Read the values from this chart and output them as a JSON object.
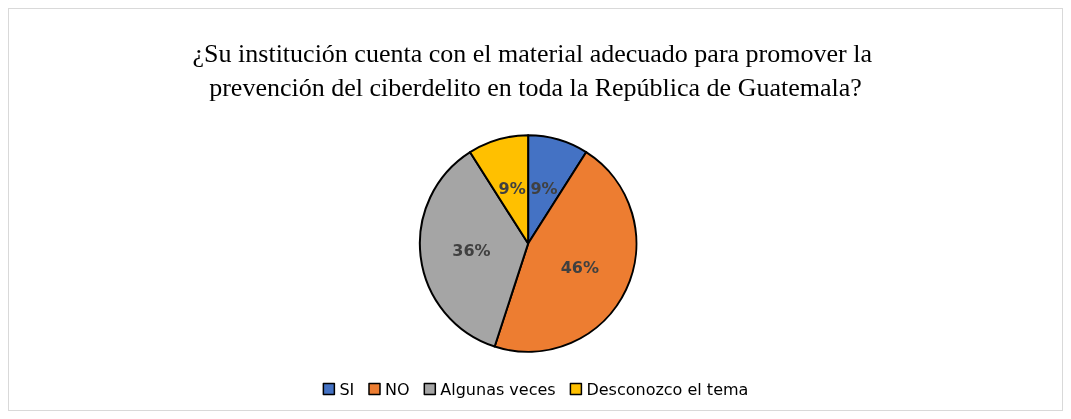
{
  "chart_data": {
    "type": "pie",
    "title": "¿Su institución cuenta con el material adecuado para promover la prevención del ciberdelito en toda la República de Guatemala?",
    "categories": [
      "SI",
      "NO",
      "Algunas veces",
      "Desconozco el tema"
    ],
    "values": [
      9,
      46,
      36,
      9
    ],
    "colors": [
      "#4472c4",
      "#ed7d31",
      "#a5a5a5",
      "#ffc000"
    ],
    "value_labels": [
      "9%",
      "46%",
      "36%",
      "9%"
    ],
    "legend": "bottom"
  }
}
